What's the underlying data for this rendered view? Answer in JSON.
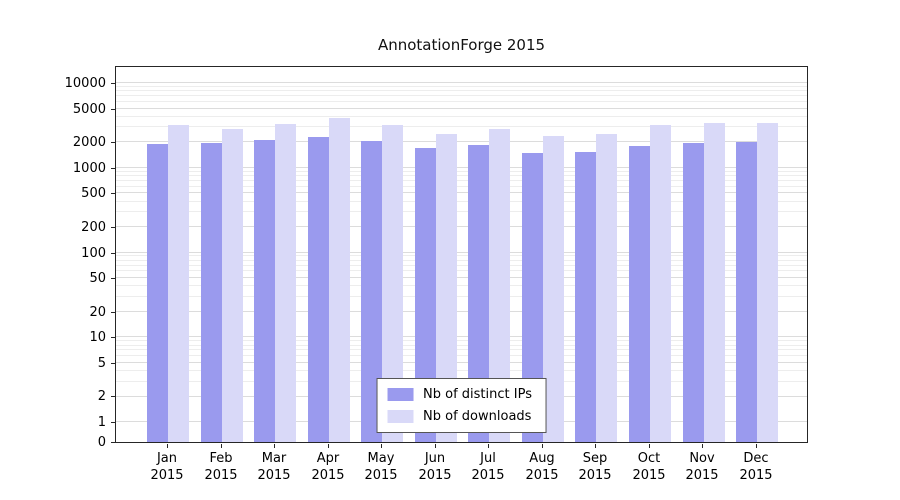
{
  "title": "AnnotationForge 2015",
  "chart_data": {
    "type": "bar",
    "categories": [
      "Jan",
      "Feb",
      "Mar",
      "Apr",
      "May",
      "Jun",
      "Jul",
      "Aug",
      "Sep",
      "Oct",
      "Nov",
      "Dec"
    ],
    "year": "2015",
    "series": [
      {
        "name": "Nb of distinct IPs",
        "color": "#9a9aee",
        "values": [
          1900,
          1950,
          2100,
          2300,
          2050,
          1700,
          1850,
          1500,
          1550,
          1800,
          1950,
          2000
        ]
      },
      {
        "name": "Nb of downloads",
        "color": "#d9d9f8",
        "values": [
          3200,
          2900,
          3300,
          3900,
          3200,
          2500,
          2900,
          2400,
          2500,
          3200,
          3400,
          3400
        ]
      }
    ],
    "y_ticks": [
      10000,
      5000,
      2000,
      1000,
      500,
      200,
      100,
      50,
      20,
      10,
      5,
      2,
      1,
      0
    ],
    "y_scale": "log",
    "ylim": [
      0,
      17000
    ],
    "xlabel": "",
    "ylabel": "",
    "grid": "horizontal",
    "legend_position": "bottom-center-inside"
  },
  "colors": {
    "distinct_ips": "#9a9aee",
    "downloads": "#d9d9f8",
    "grid_major": "#dcdcdc",
    "grid_minor": "#ededed",
    "axis": "#262626"
  }
}
